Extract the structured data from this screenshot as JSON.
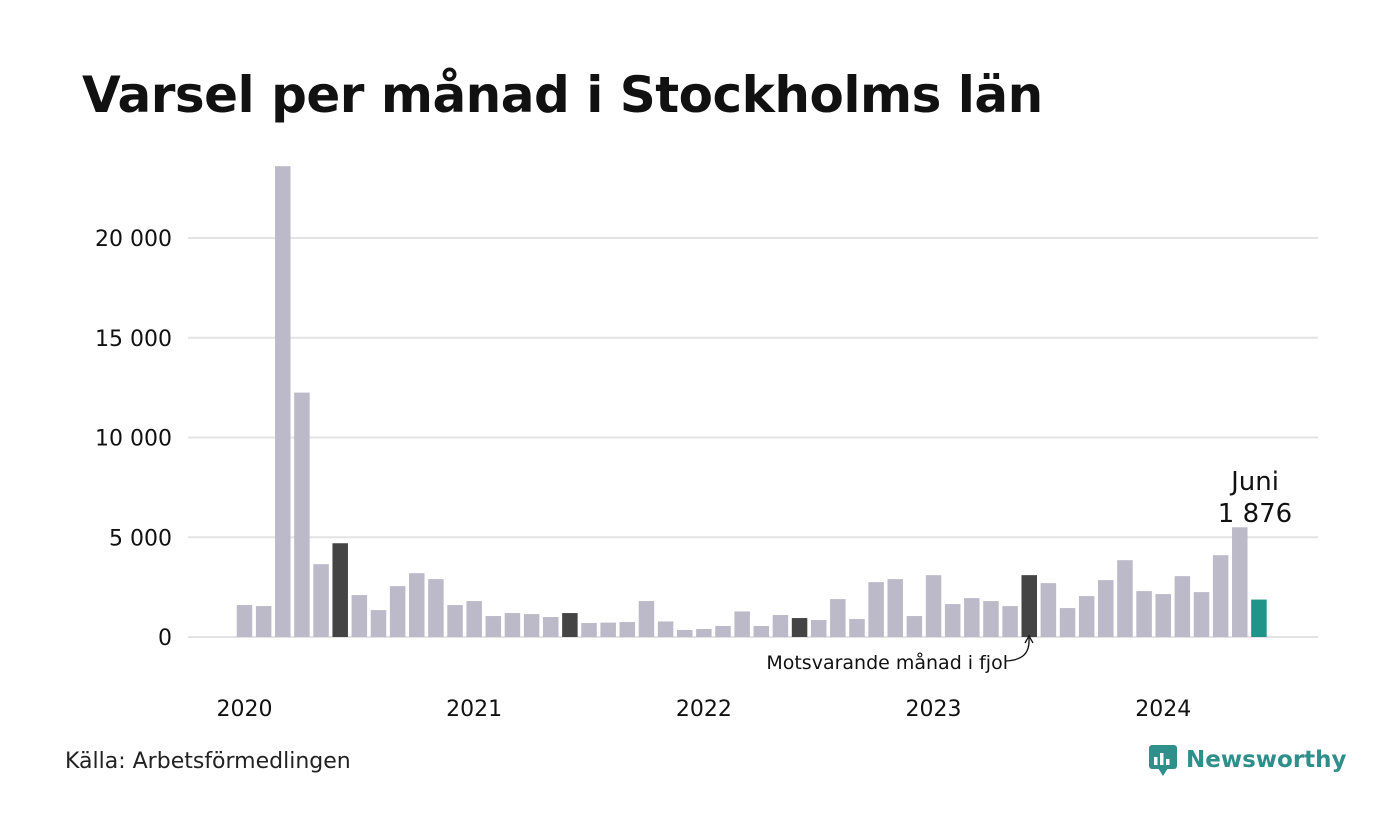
{
  "header": {
    "title": "Varsel per månad i Stockholms län"
  },
  "footer": {
    "source": "Källa: Arbetsförmedlingen",
    "brand": "Newsworthy"
  },
  "annotations": {
    "last_year_label": "Motsvarande månad i fjol",
    "callout_month": "Juni",
    "callout_value": "1 876"
  },
  "colors": {
    "default_bar": "#bcb9c8",
    "highlight_bar": "#444444",
    "current_bar": "#1f9488",
    "gridline": "#e3e3e3",
    "brand": "#2e8f8b"
  },
  "chart_data": {
    "type": "bar",
    "title": "Varsel per månad i Stockholms län",
    "xlabel": "",
    "ylabel": "",
    "ylim": [
      0,
      24000
    ],
    "yticks": [
      0,
      5000,
      10000,
      15000,
      20000
    ],
    "ytick_labels": [
      "0",
      "5 000",
      "10 000",
      "15 000",
      "20 000"
    ],
    "x_year_labels": [
      "2020",
      "2021",
      "2022",
      "2023",
      "2024"
    ],
    "grid": true,
    "legend": "none",
    "categories": [
      "2020-01",
      "2020-02",
      "2020-03",
      "2020-04",
      "2020-05",
      "2020-06",
      "2020-07",
      "2020-08",
      "2020-09",
      "2020-10",
      "2020-11",
      "2020-12",
      "2021-01",
      "2021-02",
      "2021-03",
      "2021-04",
      "2021-05",
      "2021-06",
      "2021-07",
      "2021-08",
      "2021-09",
      "2021-10",
      "2021-11",
      "2021-12",
      "2022-01",
      "2022-02",
      "2022-03",
      "2022-04",
      "2022-05",
      "2022-06",
      "2022-07",
      "2022-08",
      "2022-09",
      "2022-10",
      "2022-11",
      "2022-12",
      "2023-01",
      "2023-02",
      "2023-03",
      "2023-04",
      "2023-05",
      "2023-06",
      "2023-07",
      "2023-08",
      "2023-09",
      "2023-10",
      "2023-11",
      "2023-12",
      "2024-01",
      "2024-02",
      "2024-03",
      "2024-04",
      "2024-05",
      "2024-06"
    ],
    "values": [
      1600,
      1550,
      23600,
      12250,
      3650,
      4700,
      2100,
      1350,
      2550,
      3200,
      2900,
      1600,
      1800,
      1050,
      1200,
      1150,
      1000,
      1200,
      700,
      720,
      750,
      1800,
      780,
      350,
      400,
      550,
      1280,
      550,
      1100,
      950,
      850,
      1900,
      900,
      2750,
      2900,
      1050,
      3100,
      1650,
      1950,
      1800,
      1550,
      3100,
      2700,
      1450,
      2050,
      2850,
      3850,
      2300,
      2150,
      3050,
      2250,
      4100,
      5500,
      1876
    ],
    "highlights": {
      "dark": [
        "2020-06",
        "2021-06",
        "2022-06",
        "2023-06"
      ],
      "current": [
        "2024-06"
      ]
    }
  }
}
